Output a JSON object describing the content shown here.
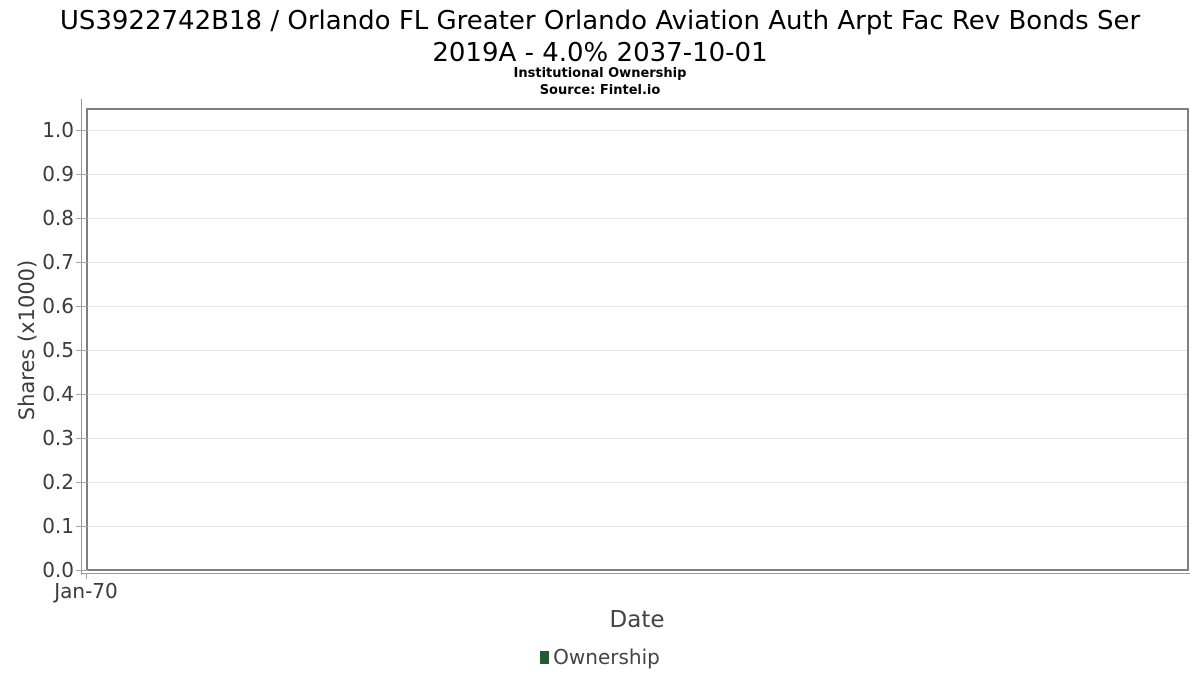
{
  "header": {
    "title_line1": "US3922742B18 / Orlando FL Greater Orlando Aviation Auth Arpt Fac Rev Bonds Ser",
    "title_line2": "2019A - 4.0% 2037-10-01",
    "subtitle": "Institutional Ownership",
    "source": "Source: Fintel.io"
  },
  "chart_data": {
    "type": "line",
    "title": "US3922742B18 / Orlando FL Greater Orlando Aviation Auth Arpt Fac Rev Bonds Ser 2019A - 4.0% 2037-10-01",
    "subtitle": "Institutional Ownership",
    "source": "Source: Fintel.io",
    "xlabel": "Date",
    "ylabel": "Shares (x1000)",
    "x_tick_labels": [
      "Jan-70"
    ],
    "y_ticks": [
      0.0,
      0.1,
      0.2,
      0.3,
      0.4,
      0.5,
      0.6,
      0.7,
      0.8,
      0.9,
      1.0
    ],
    "y_tick_labels": [
      "0.0",
      "0.1",
      "0.2",
      "0.3",
      "0.4",
      "0.5",
      "0.6",
      "0.7",
      "0.8",
      "0.9",
      "1.0"
    ],
    "ylim": [
      0.0,
      1.05
    ],
    "grid": true,
    "legend": {
      "position": "bottom",
      "entries": [
        {
          "label": "Ownership",
          "color": "#205c33"
        }
      ]
    },
    "series": [
      {
        "name": "Ownership",
        "color": "#205c33",
        "x": [],
        "y": []
      }
    ]
  },
  "colors": {
    "plot_border": "#7f7f7f",
    "gridline": "#e4e4e4",
    "axis_line": "#9a9a9a",
    "tick_text": "#3b3b3b",
    "legend_marker": "#205c33",
    "background": "#ffffff"
  }
}
